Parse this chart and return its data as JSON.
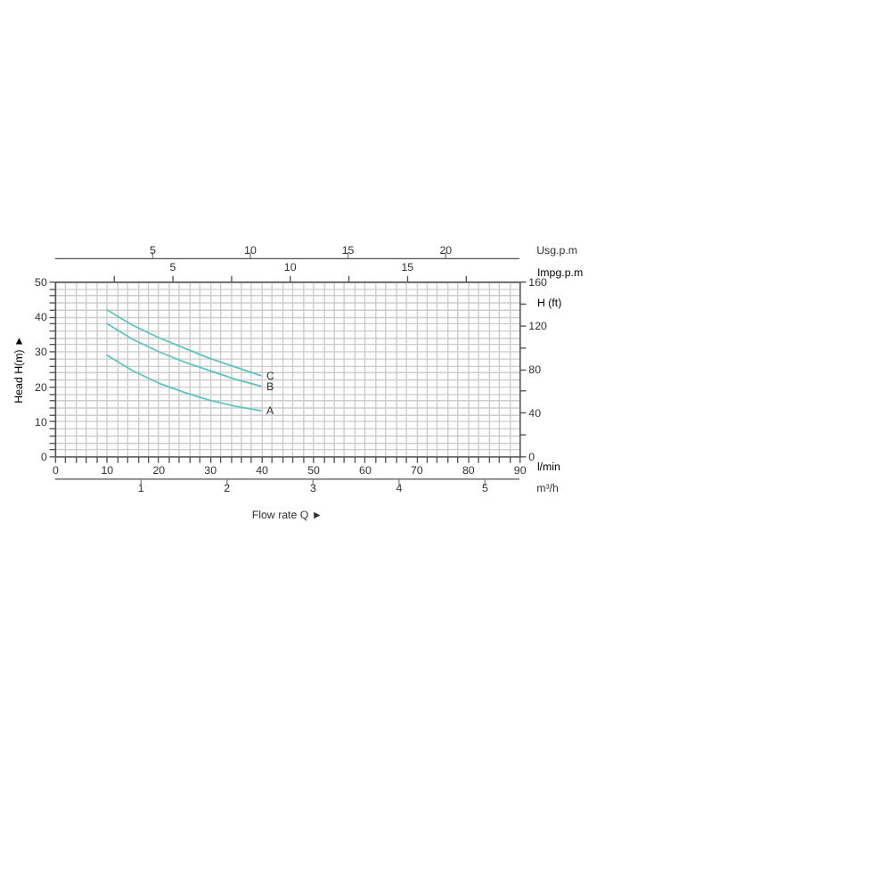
{
  "chart_data": {
    "type": "line",
    "xlabel": "l/min",
    "ylabel": "Head H(m) ►",
    "y2label": "H (ft)",
    "x2label": "Impg.p.m",
    "annotations": [
      "Flow rate Q ►",
      "Usg.p.m",
      "5",
      "10",
      "15",
      "20",
      "m³/h",
      "1",
      "2",
      "3",
      "4",
      "5"
    ],
    "x": [
      10,
      15,
      20,
      25,
      30,
      35,
      40
    ],
    "series": [
      {
        "name": "A",
        "color": "#5cc6bd",
        "values": [
          29,
          24.5,
          21,
          18.3,
          16,
          14.3,
          13
        ]
      },
      {
        "name": "B",
        "color": "#5cc6bd",
        "values": [
          38,
          33.5,
          30,
          27,
          24.5,
          22,
          20
        ]
      },
      {
        "name": "C",
        "color": "#5cc6bd",
        "values": [
          42,
          37.5,
          34,
          31,
          28,
          25.5,
          23
        ]
      }
    ],
    "xlim": [
      0,
      90
    ],
    "xticks": [
      0,
      {
        "value": 2,
        "label": null
      },
      {
        "value": 4,
        "label": null
      },
      {
        "value": 6,
        "label": null
      },
      {
        "value": 8,
        "label": null
      },
      10,
      {
        "value": 12,
        "label": null
      },
      {
        "value": 14,
        "label": null
      },
      {
        "value": 16,
        "label": null
      },
      {
        "value": 18,
        "label": null
      },
      20,
      {
        "value": 22,
        "label": null
      },
      {
        "value": 24,
        "label": null
      },
      {
        "value": 26,
        "label": null
      },
      {
        "value": 28,
        "label": null
      },
      30,
      {
        "value": 32,
        "label": null
      },
      {
        "value": 34,
        "label": null
      },
      {
        "value": 36,
        "label": null
      },
      {
        "value": 38,
        "label": null
      },
      40,
      {
        "value": 42,
        "label": null
      },
      {
        "value": 44,
        "label": null
      },
      {
        "value": 46,
        "label": null
      },
      {
        "value": 48,
        "label": null
      },
      50,
      {
        "value": 52,
        "label": null
      },
      {
        "value": 54,
        "label": null
      },
      {
        "value": 56,
        "label": null
      },
      {
        "value": 58,
        "label": null
      },
      60,
      {
        "value": 62,
        "label": null
      },
      {
        "value": 64,
        "label": null
      },
      {
        "value": 66,
        "label": null
      },
      {
        "value": 68,
        "label": null
      },
      70,
      {
        "value": 72,
        "label": null
      },
      {
        "value": 74,
        "label": null
      },
      {
        "value": 76,
        "label": null
      },
      {
        "value": 78,
        "label": null
      },
      80,
      {
        "value": 82,
        "label": null
      },
      {
        "value": 84,
        "label": null
      },
      {
        "value": 86,
        "label": null
      },
      {
        "value": 88,
        "label": null
      },
      90
    ],
    "ylim": [
      0,
      50
    ],
    "yticks": [
      0,
      {
        "value": 2,
        "label": null
      },
      {
        "value": 4,
        "label": null
      },
      {
        "value": 6,
        "label": null
      },
      {
        "value": 8,
        "label": null
      },
      10,
      {
        "value": 12,
        "label": null
      },
      {
        "value": 14,
        "label": null
      },
      {
        "value": 16,
        "label": null
      },
      {
        "value": 18,
        "label": null
      },
      20,
      {
        "value": 22,
        "label": null
      },
      {
        "value": 24,
        "label": null
      },
      {
        "value": 26,
        "label": null
      },
      {
        "value": 28,
        "label": null
      },
      30,
      {
        "value": 32,
        "label": null
      },
      {
        "value": 34,
        "label": null
      },
      {
        "value": 36,
        "label": null
      },
      {
        "value": 38,
        "label": null
      },
      40,
      {
        "value": 42,
        "label": null
      },
      {
        "value": 44,
        "label": null
      },
      {
        "value": 46,
        "label": null
      },
      {
        "value": 48,
        "label": null
      },
      50
    ],
    "y2lim": [
      0,
      160
    ],
    "y2ticks": [
      0,
      {
        "value": 20,
        "label": null
      },
      40,
      {
        "value": 60,
        "label": null
      },
      80,
      {
        "value": 100,
        "label": null
      },
      120,
      {
        "value": 140,
        "label": null
      },
      160
    ],
    "x2lim": [
      0,
      19.8
    ],
    "x2ticks": [
      {
        "value": 2.5,
        "label": null
      },
      5,
      {
        "value": 7.5,
        "label": null
      },
      10,
      {
        "value": 12.5,
        "label": null
      },
      15,
      {
        "value": 17.5,
        "label": null
      }
    ],
    "grid": true,
    "legend": false,
    "marker": "none",
    "line_style": "solid"
  }
}
